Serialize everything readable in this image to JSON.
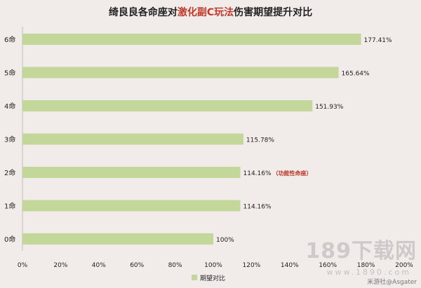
{
  "chart_data": {
    "type": "bar",
    "orientation": "horizontal",
    "title_parts": [
      {
        "text": "绮良良各命座对",
        "color": "#222222"
      },
      {
        "text": "激化副C玩法",
        "color": "#c0392b"
      },
      {
        "text": "伤害期望提升对比",
        "color": "#222222"
      }
    ],
    "categories": [
      "6命",
      "5命",
      "4命",
      "3命",
      "2命",
      "1命",
      "0命"
    ],
    "values": [
      177.41,
      165.64,
      151.93,
      115.78,
      114.16,
      114.16,
      100
    ],
    "value_labels": [
      "177.41%",
      "165.64%",
      "151.93%",
      "115.78%",
      "114.16%",
      "114.16%",
      "100%"
    ],
    "annotations": [
      {
        "category": "2命",
        "text": "（功能性命座）",
        "color": "#c0392b"
      }
    ],
    "xlim": [
      0,
      200
    ],
    "xticks": [
      "0%",
      "20%",
      "40%",
      "60%",
      "80%",
      "100%",
      "120%",
      "140%",
      "160%",
      "180%",
      "200%"
    ],
    "series": [
      {
        "name": "期望对比",
        "color": "#c4d79b"
      }
    ],
    "legend_position": "bottom",
    "grid": false
  },
  "watermark": {
    "text": "189下载网",
    "url": "www.1890.com"
  },
  "credit": "米游社@Asgater"
}
